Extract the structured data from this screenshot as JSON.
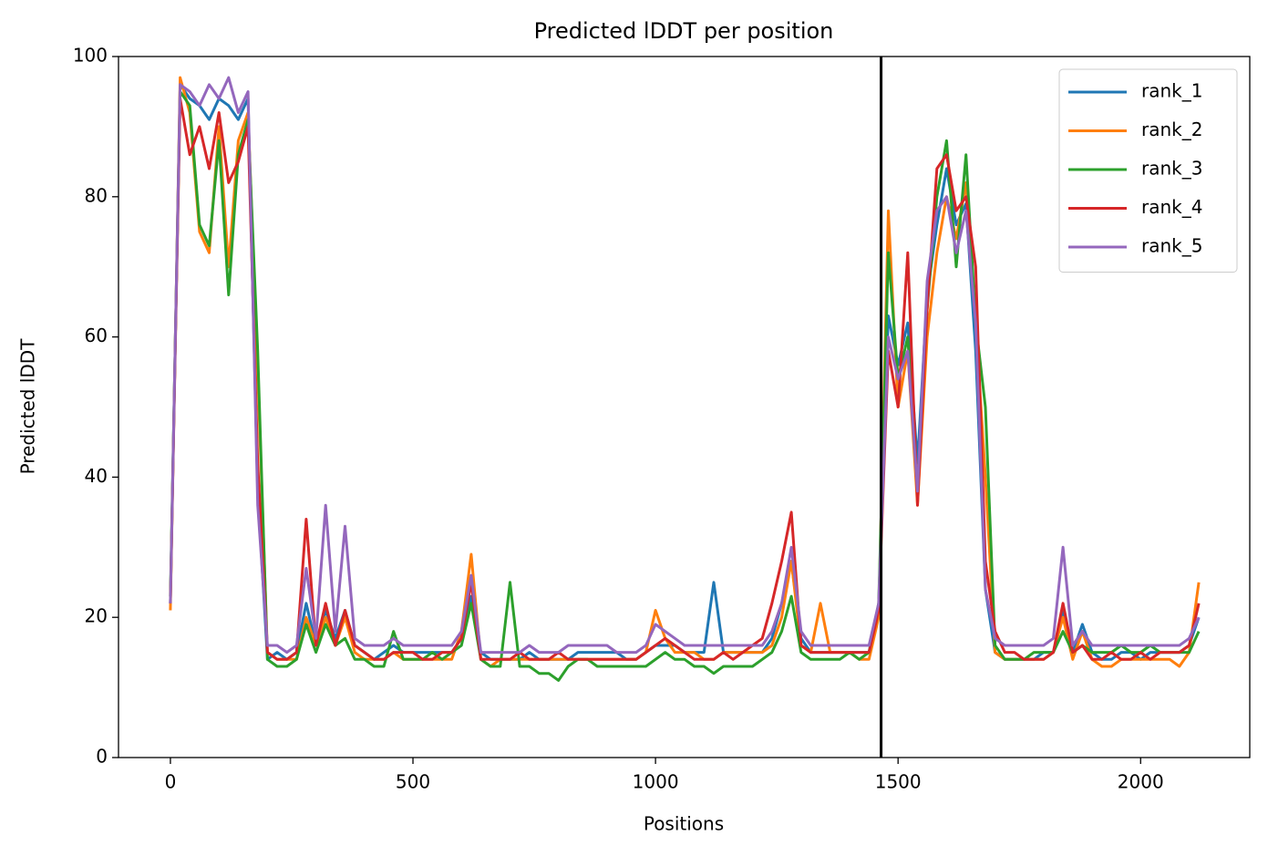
{
  "chart_data": {
    "type": "line",
    "title": "Predicted lDDT per position",
    "xlabel": "Positions",
    "ylabel": "Predicted lDDT",
    "x": [
      0,
      20,
      40,
      60,
      80,
      100,
      120,
      140,
      160,
      180,
      200,
      220,
      240,
      260,
      280,
      300,
      320,
      340,
      360,
      380,
      400,
      420,
      440,
      460,
      480,
      500,
      520,
      540,
      560,
      580,
      600,
      620,
      640,
      660,
      680,
      700,
      720,
      740,
      760,
      780,
      800,
      820,
      840,
      860,
      880,
      900,
      920,
      940,
      960,
      980,
      1000,
      1020,
      1040,
      1060,
      1080,
      1100,
      1120,
      1140,
      1160,
      1180,
      1200,
      1220,
      1240,
      1260,
      1280,
      1300,
      1320,
      1340,
      1360,
      1380,
      1400,
      1420,
      1440,
      1460,
      1480,
      1500,
      1520,
      1540,
      1560,
      1580,
      1600,
      1620,
      1640,
      1660,
      1680,
      1700,
      1720,
      1740,
      1760,
      1780,
      1800,
      1820,
      1840,
      1860,
      1880,
      1900,
      1920,
      1940,
      1960,
      1980,
      2000,
      2020,
      2040,
      2060,
      2080,
      2100,
      2120
    ],
    "series": [
      {
        "name": "rank_1",
        "color": "#1f77b4",
        "values": [
          22,
          96,
          94,
          93,
          91,
          94,
          93,
          91,
          94,
          38,
          14,
          15,
          14,
          15,
          22,
          16,
          21,
          17,
          21,
          16,
          15,
          14,
          15,
          16,
          15,
          15,
          15,
          15,
          15,
          15,
          17,
          23,
          15,
          14,
          14,
          14,
          14,
          15,
          14,
          14,
          14,
          14,
          15,
          15,
          15,
          15,
          15,
          14,
          14,
          15,
          16,
          16,
          16,
          15,
          15,
          15,
          25,
          15,
          15,
          15,
          15,
          15,
          17,
          22,
          28,
          17,
          15,
          15,
          15,
          15,
          15,
          15,
          15,
          21,
          63,
          56,
          62,
          42,
          66,
          76,
          84,
          76,
          79,
          58,
          24,
          15,
          14,
          14,
          14,
          14,
          15,
          15,
          21,
          15,
          19,
          15,
          14,
          14,
          15,
          15,
          14,
          15,
          15,
          15,
          15,
          16,
          20
        ]
      },
      {
        "name": "rank_2",
        "color": "#ff7f0e",
        "values": [
          21,
          97,
          92,
          75,
          72,
          90,
          70,
          88,
          92,
          55,
          15,
          14,
          14,
          14,
          20,
          16,
          20,
          16,
          20,
          15,
          14,
          14,
          14,
          15,
          14,
          14,
          14,
          14,
          14,
          14,
          18,
          29,
          14,
          13,
          14,
          14,
          14,
          14,
          14,
          14,
          14,
          14,
          14,
          14,
          14,
          14,
          14,
          14,
          14,
          15,
          21,
          17,
          15,
          15,
          15,
          14,
          14,
          15,
          15,
          15,
          15,
          15,
          16,
          20,
          28,
          16,
          15,
          22,
          15,
          15,
          15,
          14,
          14,
          20,
          78,
          50,
          58,
          36,
          60,
          72,
          80,
          74,
          82,
          62,
          40,
          15,
          14,
          14,
          14,
          14,
          14,
          15,
          20,
          14,
          18,
          14,
          13,
          13,
          14,
          14,
          14,
          14,
          14,
          14,
          13,
          15,
          25
        ]
      },
      {
        "name": "rank_3",
        "color": "#2ca02c",
        "values": [
          23,
          95,
          93,
          76,
          73,
          88,
          66,
          86,
          91,
          58,
          14,
          13,
          13,
          14,
          19,
          15,
          19,
          16,
          17,
          14,
          14,
          13,
          13,
          18,
          14,
          14,
          14,
          15,
          14,
          15,
          16,
          22,
          14,
          13,
          13,
          25,
          13,
          13,
          12,
          12,
          11,
          13,
          14,
          14,
          13,
          13,
          13,
          13,
          13,
          13,
          14,
          15,
          14,
          14,
          13,
          13,
          12,
          13,
          13,
          13,
          13,
          14,
          15,
          18,
          23,
          15,
          14,
          14,
          14,
          14,
          15,
          14,
          15,
          22,
          72,
          54,
          60,
          38,
          64,
          80,
          88,
          70,
          86,
          62,
          50,
          16,
          14,
          14,
          14,
          15,
          15,
          15,
          18,
          15,
          16,
          15,
          15,
          15,
          16,
          15,
          15,
          16,
          15,
          15,
          15,
          15,
          18
        ]
      },
      {
        "name": "rank_4",
        "color": "#d62728",
        "values": [
          22,
          94,
          86,
          90,
          84,
          92,
          82,
          85,
          90,
          42,
          15,
          14,
          14,
          15,
          34,
          16,
          22,
          16,
          21,
          16,
          15,
          14,
          14,
          15,
          15,
          15,
          14,
          14,
          15,
          15,
          17,
          25,
          14,
          14,
          14,
          14,
          15,
          14,
          14,
          14,
          15,
          14,
          14,
          14,
          14,
          14,
          14,
          14,
          14,
          15,
          16,
          17,
          16,
          15,
          14,
          14,
          14,
          15,
          14,
          15,
          16,
          17,
          22,
          28,
          35,
          16,
          15,
          15,
          15,
          15,
          15,
          15,
          15,
          21,
          58,
          50,
          72,
          36,
          64,
          84,
          86,
          78,
          80,
          70,
          28,
          18,
          15,
          15,
          14,
          14,
          14,
          15,
          22,
          15,
          16,
          14,
          14,
          15,
          14,
          14,
          15,
          14,
          15,
          15,
          15,
          16,
          22
        ]
      },
      {
        "name": "rank_5",
        "color": "#9467bd",
        "values": [
          22,
          96,
          95,
          93,
          96,
          94,
          97,
          92,
          95,
          36,
          16,
          16,
          15,
          16,
          27,
          17,
          36,
          18,
          33,
          17,
          16,
          16,
          16,
          17,
          16,
          16,
          16,
          16,
          16,
          16,
          18,
          26,
          15,
          15,
          15,
          15,
          15,
          16,
          15,
          15,
          15,
          16,
          16,
          16,
          16,
          16,
          15,
          15,
          15,
          16,
          19,
          18,
          17,
          16,
          16,
          16,
          16,
          16,
          16,
          16,
          16,
          16,
          18,
          22,
          30,
          18,
          16,
          16,
          16,
          16,
          16,
          16,
          16,
          22,
          60,
          54,
          58,
          38,
          68,
          78,
          80,
          72,
          78,
          62,
          24,
          17,
          16,
          16,
          16,
          16,
          16,
          17,
          30,
          16,
          18,
          16,
          16,
          16,
          16,
          16,
          16,
          16,
          16,
          16,
          16,
          17,
          20
        ]
      }
    ],
    "vlines": [
      1465
    ],
    "vline_color": "#000000",
    "xlim": [
      -107,
      2225
    ],
    "ylim": [
      0,
      100
    ],
    "xticks": [
      0,
      500,
      1000,
      1500,
      2000
    ],
    "yticks": [
      0,
      20,
      40,
      60,
      80,
      100
    ],
    "legend": "upper right",
    "grid": false
  }
}
